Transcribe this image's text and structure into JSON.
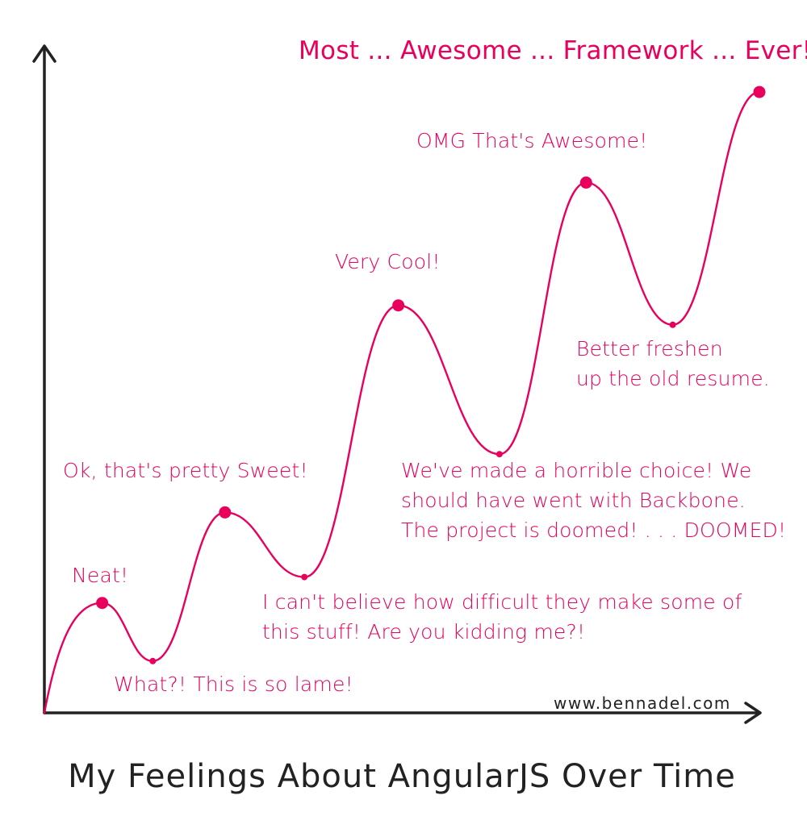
{
  "chart_data": {
    "type": "line",
    "title": "My Feelings About AngularJS Over Time",
    "xlabel": "",
    "ylabel": "",
    "grid": false,
    "legend": "none",
    "credit": "www.bennadel.com",
    "color": "#e8005c",
    "points": [
      {
        "label": "Neat!",
        "kind": "peak",
        "x": 0.08,
        "y": 0.17
      },
      {
        "label": "What?! This is so lame!",
        "kind": "valley",
        "x": 0.15,
        "y": 0.08
      },
      {
        "label": "Ok, that's pretty Sweet!",
        "kind": "peak",
        "x": 0.25,
        "y": 0.31
      },
      {
        "label": "I can't believe how difficult they make some of this stuff! Are you kidding me?!",
        "kind": "valley",
        "x": 0.36,
        "y": 0.21
      },
      {
        "label": "Very Cool!",
        "kind": "peak",
        "x": 0.49,
        "y": 0.63
      },
      {
        "label": "We've made a horrible choice! We should have went with Backbone. The project is doomed! . . . DOOMED!",
        "kind": "valley",
        "x": 0.63,
        "y": 0.4
      },
      {
        "label": "OMG That's Awesome!",
        "kind": "peak",
        "x": 0.75,
        "y": 0.82
      },
      {
        "label": "Better freshen up the old resume.",
        "kind": "valley",
        "x": 0.87,
        "y": 0.6
      },
      {
        "label": "Most ... Awesome ... Framework ... Ever!",
        "kind": "peak",
        "x": 0.99,
        "y": 0.96
      }
    ]
  },
  "annotations": {
    "neat": [
      "Neat!"
    ],
    "lame": [
      "What?! This is so lame!"
    ],
    "sweet": [
      "Ok, that's pretty Sweet!"
    ],
    "difficult": [
      "I can't believe how difficult they make some of",
      "this stuff! Are you kidding me?!"
    ],
    "cool": [
      "Very Cool!"
    ],
    "doomed": [
      "We've made a horrible choice! We",
      "should have went with Backbone.",
      "The project is doomed! . . . DOOMED!"
    ],
    "omg": [
      "OMG That's Awesome!"
    ],
    "resume": [
      "Better freshen",
      "up the old resume."
    ],
    "ever": [
      "Most ... Awesome ... Framework ... Ever!"
    ]
  }
}
